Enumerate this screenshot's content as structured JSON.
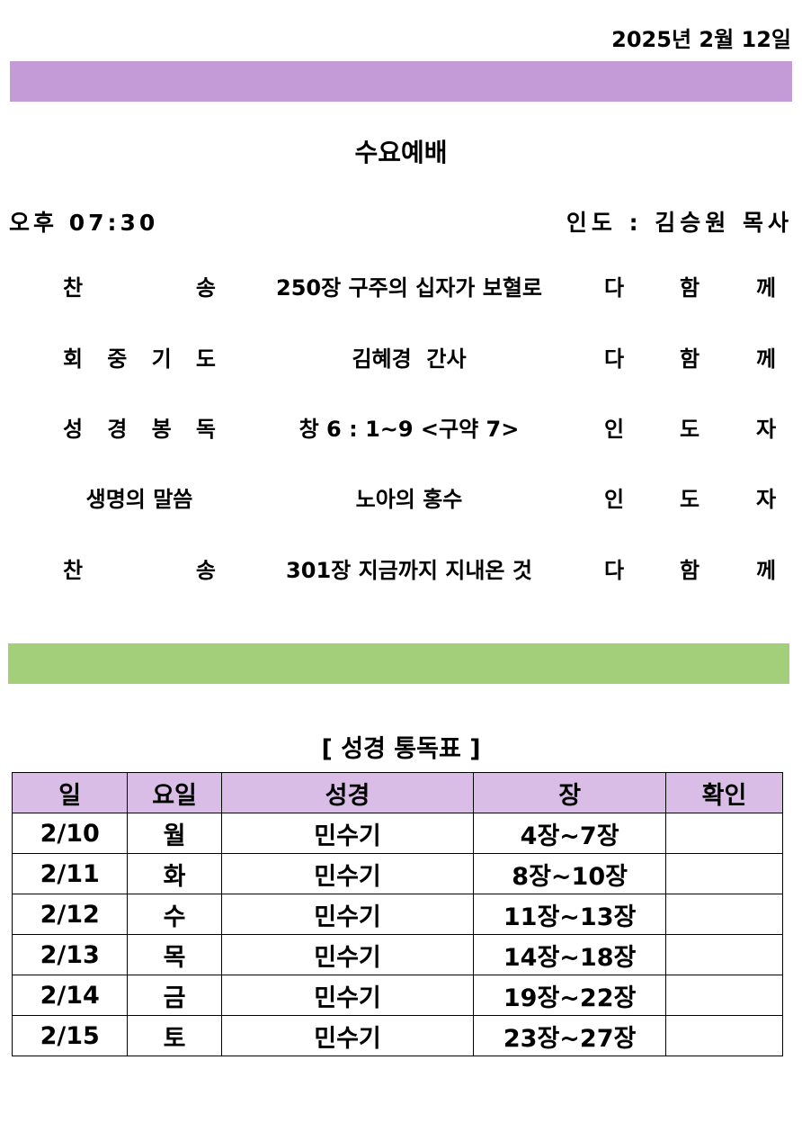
{
  "date": "2025년 2월 12일",
  "colors": {
    "purple_bar": "#C49BD6",
    "green_bar": "#A3CF7A",
    "table_header": "#D9BDE6"
  },
  "service": {
    "title": "수요예배",
    "time": "오후 07:30",
    "leader": "인도 : 김승원 목사"
  },
  "program": [
    {
      "label": [
        "찬",
        "송"
      ],
      "content": "250장 구주의 십자가 보혈로",
      "who": [
        "다",
        "함",
        "께"
      ]
    },
    {
      "label": [
        "회",
        "중",
        "기",
        "도"
      ],
      "content": "김혜경  간사",
      "who": [
        "다",
        "함",
        "께"
      ]
    },
    {
      "label": [
        "성",
        "경",
        "봉",
        "독"
      ],
      "content": "창 6 : 1~9 <구약 7>",
      "who": [
        "인",
        "도",
        "자"
      ]
    },
    {
      "label": [
        "생명의 말씀"
      ],
      "content": "노아의 홍수",
      "who": [
        "인",
        "도",
        "자"
      ]
    },
    {
      "label": [
        "찬",
        "송"
      ],
      "content": "301장 지금까지 지내온 것",
      "who": [
        "다",
        "함",
        "께"
      ]
    }
  ],
  "reading": {
    "title": "[ 성경 통독표 ]",
    "headers": [
      "일",
      "요일",
      "성경",
      "장",
      "확인"
    ],
    "rows": [
      [
        "2/10",
        "월",
        "민수기",
        "4장~7장",
        ""
      ],
      [
        "2/11",
        "화",
        "민수기",
        "8장~10장",
        ""
      ],
      [
        "2/12",
        "수",
        "민수기",
        "11장~13장",
        ""
      ],
      [
        "2/13",
        "목",
        "민수기",
        "14장~18장",
        ""
      ],
      [
        "2/14",
        "금",
        "민수기",
        "19장~22장",
        ""
      ],
      [
        "2/15",
        "토",
        "민수기",
        "23장~27장",
        ""
      ]
    ]
  }
}
